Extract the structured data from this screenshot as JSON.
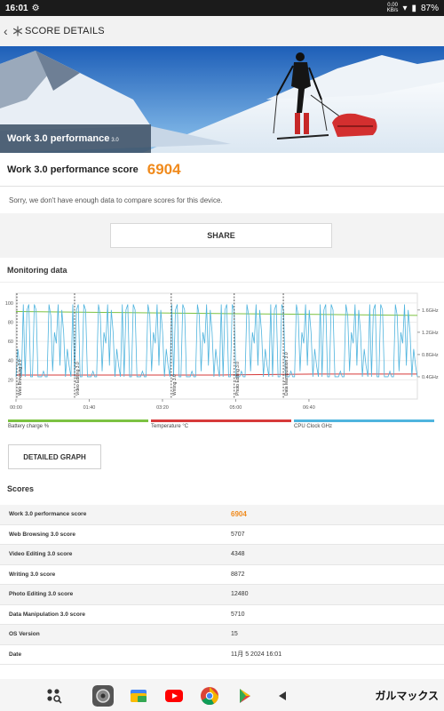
{
  "status": {
    "time": "16:01",
    "network_speed": "0.00",
    "network_unit": "KB/s",
    "battery": "87%"
  },
  "appbar": {
    "title": "SCORE DETAILS"
  },
  "hero": {
    "title": "Work 3.0 performance",
    "version": "3.0"
  },
  "score": {
    "label": "Work 3.0 performance score",
    "value": "6904"
  },
  "compare_message": "Sorry, we don't have enough data to compare scores for this device.",
  "share_label": "SHARE",
  "monitoring_title": "Monitoring data",
  "chart_data": {
    "type": "line",
    "y_left_ticks": [
      "100",
      "80",
      "60",
      "40",
      "20"
    ],
    "y_right_ticks": [
      "1.6GHz",
      "1.2GHz",
      "0.8GHz",
      "0.4GHz"
    ],
    "x_ticks": [
      "00:00",
      "01:40",
      "03:20",
      "05:00",
      "06:40"
    ],
    "segments": [
      "Web Browsing 3.0",
      "Video Editing 3.0",
      "Writing 3.0",
      "Photo Editing 3.0",
      "Data Manipulation 3.0"
    ],
    "segment_starts_sec": [
      0,
      80,
      212,
      298,
      365
    ],
    "duration_sec": 548,
    "series": [
      {
        "name": "Battery charge %",
        "color": "#7cc242",
        "values_pct": [
          91,
          90,
          89,
          88,
          87
        ]
      },
      {
        "name": "Temperature °C",
        "color": "#d63a3a",
        "values_pct": [
          25,
          25,
          25,
          26,
          26
        ]
      },
      {
        "name": "CPU Clock GHz",
        "color": "#4fb4de",
        "pattern_ghz": [
          0.4,
          1.7,
          0.5,
          1.6,
          0.4,
          0.4,
          1.7,
          0.9,
          1.6,
          0.4,
          1.2,
          1.7,
          0.4,
          1.5,
          0.6,
          1.7,
          0.4,
          1.0
        ]
      }
    ]
  },
  "legend": [
    "Battery charge %",
    "Temperature °C",
    "CPU Clock GHz"
  ],
  "detailed_graph_label": "DETAILED GRAPH",
  "scores_title": "Scores",
  "scores": [
    {
      "name": "Work 3.0 performance score",
      "value": "6904",
      "highlight": true
    },
    {
      "name": "Web Browsing 3.0 score",
      "value": "5707"
    },
    {
      "name": "Video Editing 3.0 score",
      "value": "4348"
    },
    {
      "name": "Writing 3.0 score",
      "value": "8872"
    },
    {
      "name": "Photo Editing 3.0 score",
      "value": "12480"
    },
    {
      "name": "Data Manipulation 3.0 score",
      "value": "5710"
    },
    {
      "name": "OS Version",
      "value": "15"
    },
    {
      "name": "Date",
      "value": "11月 5 2024 16:01"
    }
  ],
  "watermark": "ガルマックス"
}
